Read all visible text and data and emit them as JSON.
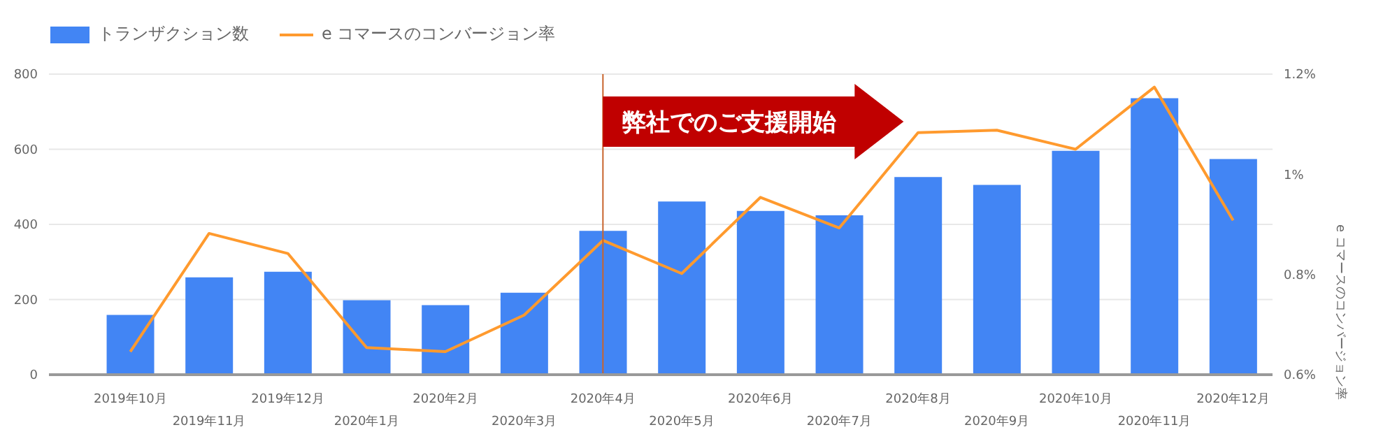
{
  "chart_data": {
    "type": "bar",
    "y2label": "e コマースのコンバージョン率",
    "categories": [
      "2019年10月",
      "2019年11月",
      "2019年12月",
      "2020年1月",
      "2020年2月",
      "2020年3月",
      "2020年4月",
      "2020年5月",
      "2020年6月",
      "2020年7月",
      "2020年8月",
      "2020年9月",
      "2020年10月",
      "2020年11月",
      "2020年12月"
    ],
    "series": [
      {
        "name": "トランザクション数",
        "color": "#4285f4",
        "values": [
          159,
          259,
          274,
          198,
          185,
          218,
          383,
          461,
          436,
          424,
          526,
          505,
          596,
          736,
          574
        ]
      },
      {
        "name": "e コマースのコンバージョン率",
        "type": "line",
        "axis": "y2",
        "color": "#ff9a2e",
        "values": [
          0.646,
          0.882,
          0.842,
          0.654,
          0.646,
          0.719,
          0.868,
          0.802,
          0.954,
          0.893,
          1.083,
          1.088,
          1.05,
          1.174,
          0.908
        ]
      }
    ],
    "ylim": [
      0,
      800
    ],
    "yticks": [
      0,
      200,
      400,
      600,
      800
    ],
    "y2lim": [
      0.6,
      1.2
    ],
    "y2ticks": [
      {
        "value": 0.6,
        "label": "0.6%"
      },
      {
        "value": 0.8,
        "label": "0.8%"
      },
      {
        "value": 1,
        "label": "1%"
      },
      {
        "value": 1.2,
        "label": "1.2%"
      }
    ],
    "ref_lines": [
      {
        "axis": "x",
        "value": "2020年4月",
        "label": "弊社でのご支援開始",
        "color": "#c8642c"
      }
    ],
    "grid": "y",
    "legend": "top left",
    "marker": "none",
    "line_style": "solid"
  }
}
